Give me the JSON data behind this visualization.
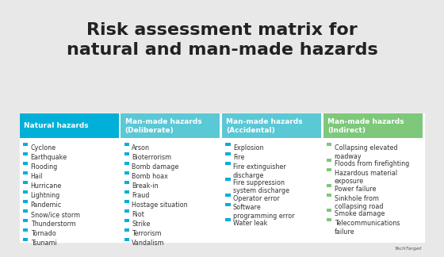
{
  "title": "Risk assessment matrix for\nnatural and man-made hazards",
  "title_fontsize": 16,
  "background_color": "#e8e8e8",
  "table_bg": "#ffffff",
  "header_colors": [
    "#00b0d8",
    "#5bc8d5",
    "#5bc8d5",
    "#7dc87a"
  ],
  "header_text_color": "#ffffff",
  "bullet_colors": [
    "#00b0d8",
    "#00b0d8",
    "#00b0d8",
    "#7dc87a"
  ],
  "columns": [
    {
      "header": "Natural hazards",
      "items": [
        "Cyclone",
        "Earthquake",
        "Flooding",
        "Hail",
        "Hurricane",
        "Lightning",
        "Pandemic",
        "Snow/ice storm",
        "Thunderstorm",
        "Tornado",
        "Tsunami"
      ]
    },
    {
      "header": "Man-made hazards\n(Deliberate)",
      "items": [
        "Arson",
        "Bioterrorism",
        "Bomb damage",
        "Bomb hoax",
        "Break-in",
        "Fraud",
        "Hostage situation",
        "Riot",
        "Strike",
        "Terrorism",
        "Vandalism"
      ]
    },
    {
      "header": "Man-made hazards\n(Accidental)",
      "items": [
        "Explosion",
        "Fire",
        "Fire extinguisher\ndischarge",
        "Fire suppression\nsystem discharge",
        "Operator error",
        "Software\nprogramming error",
        "Water leak"
      ]
    },
    {
      "header": "Man-made hazards\n(Indirect)",
      "items": [
        "Collapsing elevated\nroadway",
        "Floods from firefighting",
        "Hazardous material\nexposure",
        "Power failure",
        "Sinkhole from\ncollapsing road",
        "Smoke damage",
        "Telecommunications\nfailure"
      ]
    }
  ],
  "footer_text": "TechTarget",
  "footer_color": "#555555"
}
